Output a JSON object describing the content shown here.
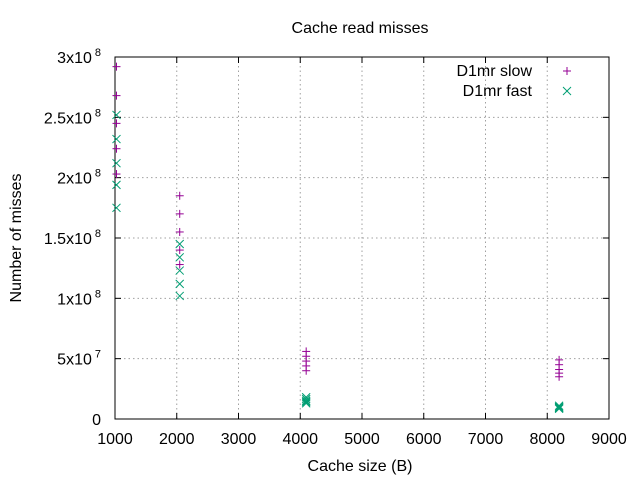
{
  "chart_data": {
    "type": "scatter",
    "title": "Cache read misses",
    "xlabel": "Cache size (B)",
    "ylabel": "Number of misses",
    "xlim": [
      1000,
      9000
    ],
    "ylim": [
      0,
      300000000
    ],
    "grid": true,
    "legend_position": "top-right",
    "x_ticks": [
      {
        "value": 1000,
        "label": "1000"
      },
      {
        "value": 2000,
        "label": "2000"
      },
      {
        "value": 3000,
        "label": "3000"
      },
      {
        "value": 4000,
        "label": "4000"
      },
      {
        "value": 5000,
        "label": "5000"
      },
      {
        "value": 6000,
        "label": "6000"
      },
      {
        "value": 7000,
        "label": "7000"
      },
      {
        "value": 8000,
        "label": "8000"
      },
      {
        "value": 9000,
        "label": "9000"
      }
    ],
    "y_ticks": [
      {
        "value": 0,
        "mantissa": "0",
        "exp": ""
      },
      {
        "value": 50000000,
        "mantissa": "5x10",
        "exp": "7"
      },
      {
        "value": 100000000,
        "mantissa": "1x10",
        "exp": "8"
      },
      {
        "value": 150000000,
        "mantissa": "1.5x10",
        "exp": "8"
      },
      {
        "value": 200000000,
        "mantissa": "2x10",
        "exp": "8"
      },
      {
        "value": 250000000,
        "mantissa": "2.5x10",
        "exp": "8"
      },
      {
        "value": 300000000,
        "mantissa": "3x10",
        "exp": "8"
      }
    ],
    "series": [
      {
        "name": "D1mr slow",
        "color": "#940094",
        "marker": "plus",
        "points": [
          [
            1024,
            292000000
          ],
          [
            1024,
            268000000
          ],
          [
            1024,
            245000000
          ],
          [
            1024,
            224000000
          ],
          [
            1024,
            203000000
          ],
          [
            2048,
            185000000
          ],
          [
            2048,
            170000000
          ],
          [
            2048,
            155000000
          ],
          [
            2048,
            140000000
          ],
          [
            2048,
            128000000
          ],
          [
            4096,
            56000000
          ],
          [
            4096,
            52000000
          ],
          [
            4096,
            48000000
          ],
          [
            4096,
            44000000
          ],
          [
            4096,
            40000000
          ],
          [
            8192,
            49000000
          ],
          [
            8192,
            45000000
          ],
          [
            8192,
            41000000
          ],
          [
            8192,
            38000000
          ],
          [
            8192,
            35000000
          ]
        ]
      },
      {
        "name": "D1mr fast",
        "color": "#009e73",
        "marker": "x",
        "points": [
          [
            1024,
            252000000
          ],
          [
            1024,
            232000000
          ],
          [
            1024,
            212000000
          ],
          [
            1024,
            194000000
          ],
          [
            1024,
            175000000
          ],
          [
            2048,
            145000000
          ],
          [
            2048,
            134000000
          ],
          [
            2048,
            123000000
          ],
          [
            2048,
            112000000
          ],
          [
            2048,
            102000000
          ],
          [
            4096,
            18000000
          ],
          [
            4096,
            16500000
          ],
          [
            4096,
            15000000
          ],
          [
            4096,
            14000000
          ],
          [
            4096,
            13000000
          ],
          [
            8192,
            11000000
          ],
          [
            8192,
            10000000
          ],
          [
            8192,
            9500000
          ],
          [
            8192,
            9000000
          ],
          [
            8192,
            8500000
          ]
        ]
      }
    ]
  }
}
